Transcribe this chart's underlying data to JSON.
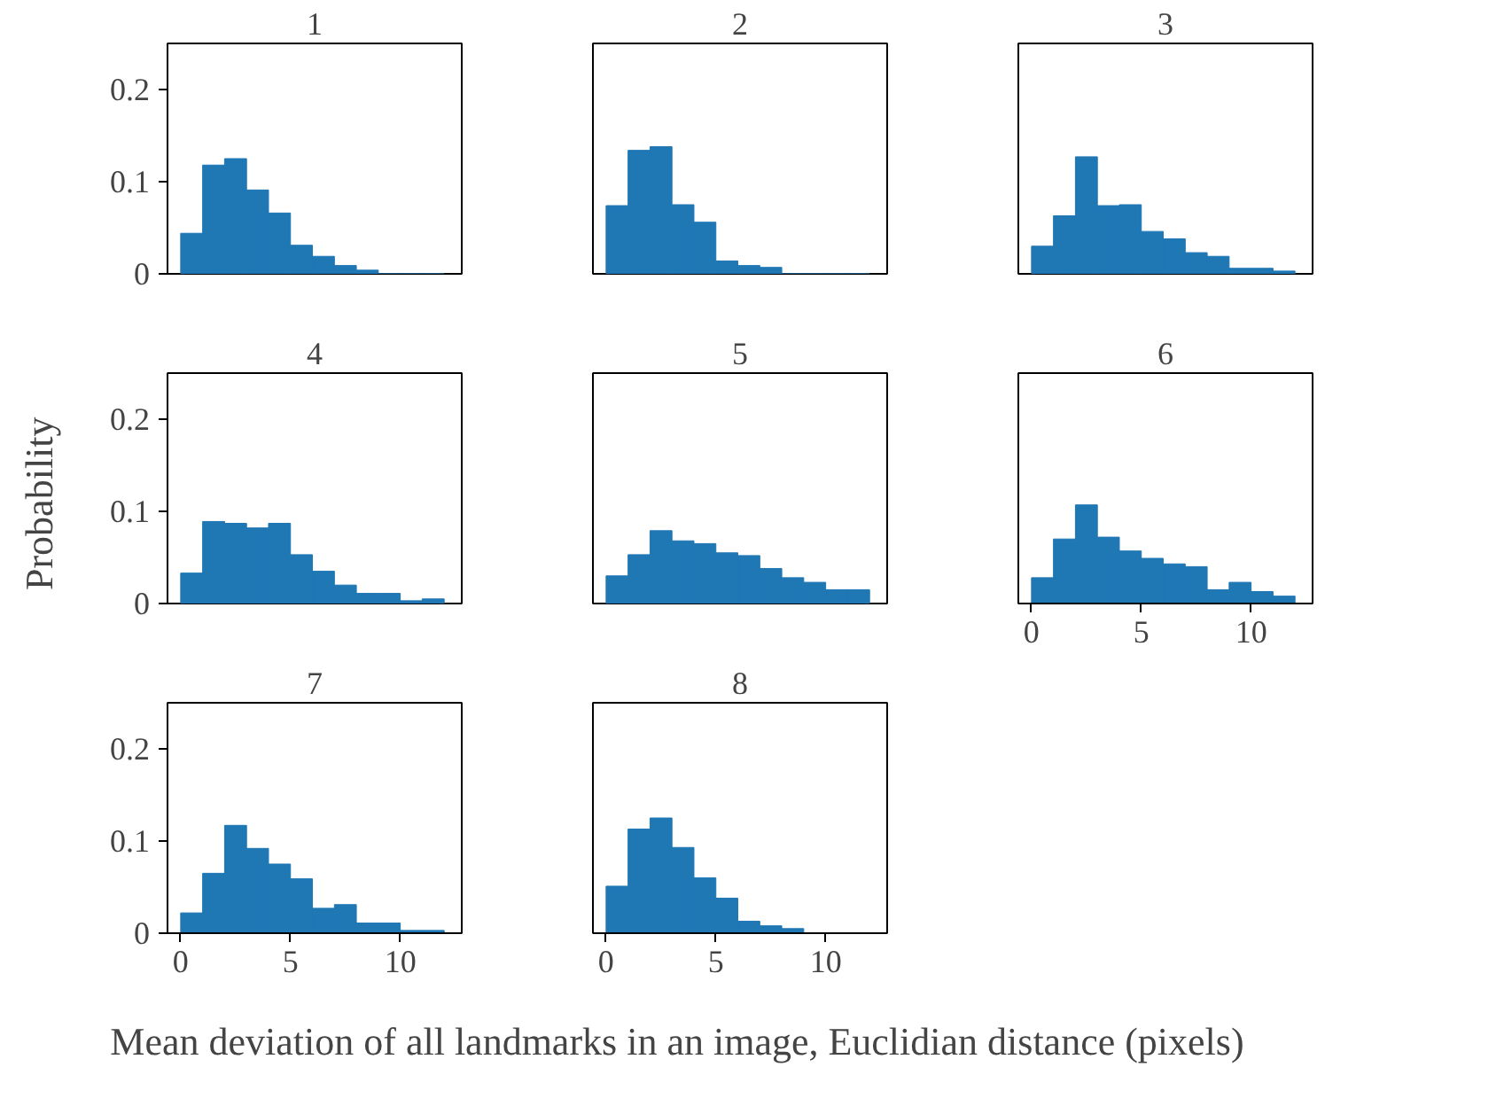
{
  "chart_data": [
    {
      "type": "histogram",
      "title": "1",
      "bins": [
        0,
        1,
        2,
        3,
        4,
        5,
        6,
        7,
        8,
        9,
        10,
        11,
        12
      ],
      "values": [
        0.044,
        0.118,
        0.125,
        0.091,
        0.066,
        0.031,
        0.019,
        0.009,
        0.004,
        0,
        0,
        0
      ],
      "color": "#1f77b4",
      "xlim": [
        -0.6,
        12.8
      ],
      "xticks": [
        0,
        5,
        10
      ],
      "ylim": [
        0,
        0.25
      ],
      "yticks": [
        0,
        0.1,
        0.2
      ],
      "tick_labels": "y"
    },
    {
      "type": "histogram",
      "title": "2",
      "bins": [
        0,
        1,
        2,
        3,
        4,
        5,
        6,
        7,
        8,
        9,
        10,
        11,
        12
      ],
      "values": [
        0.074,
        0.134,
        0.138,
        0.075,
        0.056,
        0.014,
        0.009,
        0.007,
        0,
        0,
        0,
        0
      ],
      "color": "#1f77b4",
      "xlim": [
        -0.6,
        12.8
      ],
      "xticks": [
        0,
        5,
        10
      ],
      "ylim": [
        0,
        0.25
      ],
      "yticks": [
        0,
        0.1,
        0.2
      ],
      "tick_labels": false
    },
    {
      "type": "histogram",
      "title": "3",
      "bins": [
        0,
        1,
        2,
        3,
        4,
        5,
        6,
        7,
        8,
        9,
        10,
        11,
        12
      ],
      "values": [
        0.03,
        0.063,
        0.127,
        0.074,
        0.075,
        0.046,
        0.038,
        0.023,
        0.019,
        0.006,
        0.006,
        0.003
      ],
      "color": "#1f77b4",
      "xlim": [
        -0.6,
        12.8
      ],
      "xticks": [
        0,
        5,
        10
      ],
      "ylim": [
        0,
        0.25
      ],
      "yticks": [
        0,
        0.1,
        0.2
      ],
      "tick_labels": false
    },
    {
      "type": "histogram",
      "title": "4",
      "ylabel": "Probability",
      "bins": [
        0,
        1,
        2,
        3,
        4,
        5,
        6,
        7,
        8,
        9,
        10,
        11,
        12
      ],
      "values": [
        0.033,
        0.089,
        0.087,
        0.082,
        0.087,
        0.053,
        0.035,
        0.02,
        0.011,
        0.011,
        0.003,
        0.005
      ],
      "color": "#1f77b4",
      "xlim": [
        -0.6,
        12.8
      ],
      "xticks": [
        0,
        5,
        10
      ],
      "ylim": [
        0,
        0.25
      ],
      "yticks": [
        0,
        0.1,
        0.2
      ],
      "tick_labels": "y"
    },
    {
      "type": "histogram",
      "title": "5",
      "bins": [
        0,
        1,
        2,
        3,
        4,
        5,
        6,
        7,
        8,
        9,
        10,
        11,
        12
      ],
      "values": [
        0.03,
        0.053,
        0.079,
        0.068,
        0.065,
        0.055,
        0.052,
        0.038,
        0.028,
        0.023,
        0.015,
        0.015
      ],
      "color": "#1f77b4",
      "xlim": [
        -0.6,
        12.8
      ],
      "xticks": [
        0,
        5,
        10
      ],
      "ylim": [
        0,
        0.25
      ],
      "yticks": [
        0,
        0.1,
        0.2
      ],
      "tick_labels": false
    },
    {
      "type": "histogram",
      "title": "6",
      "bins": [
        0,
        1,
        2,
        3,
        4,
        5,
        6,
        7,
        8,
        9,
        10,
        11,
        12
      ],
      "values": [
        0.028,
        0.07,
        0.107,
        0.072,
        0.057,
        0.049,
        0.043,
        0.04,
        0.015,
        0.023,
        0.013,
        0.008
      ],
      "color": "#1f77b4",
      "xlim": [
        -0.6,
        12.8
      ],
      "xticks": [
        0,
        5,
        10
      ],
      "ylim": [
        0,
        0.25
      ],
      "yticks": [
        0,
        0.1,
        0.2
      ],
      "tick_labels": "x"
    },
    {
      "type": "histogram",
      "title": "7",
      "bins": [
        0,
        1,
        2,
        3,
        4,
        5,
        6,
        7,
        8,
        9,
        10,
        11,
        12
      ],
      "values": [
        0.022,
        0.065,
        0.117,
        0.092,
        0.075,
        0.059,
        0.027,
        0.031,
        0.011,
        0.011,
        0.003,
        0.003
      ],
      "color": "#1f77b4",
      "xlim": [
        -0.6,
        12.8
      ],
      "xticks": [
        0,
        5,
        10
      ],
      "ylim": [
        0,
        0.25
      ],
      "yticks": [
        0,
        0.1,
        0.2
      ]
    },
    {
      "type": "histogram",
      "title": "8",
      "xlabel": "Mean deviation of all landmarks in an image, Euclidian distance (pixels)",
      "bins": [
        0,
        1,
        2,
        3,
        4,
        5,
        6,
        7,
        8,
        9,
        10,
        11,
        12
      ],
      "values": [
        0.051,
        0.113,
        0.125,
        0.093,
        0.06,
        0.038,
        0.013,
        0.008,
        0.005,
        0,
        0,
        0
      ],
      "color": "#1f77b4",
      "xlim": [
        -0.6,
        12.8
      ],
      "xticks": [
        0,
        5,
        10
      ],
      "ylim": [
        0,
        0.25
      ],
      "yticks": [
        0,
        0.1,
        0.2
      ],
      "tick_labels": "x"
    }
  ]
}
